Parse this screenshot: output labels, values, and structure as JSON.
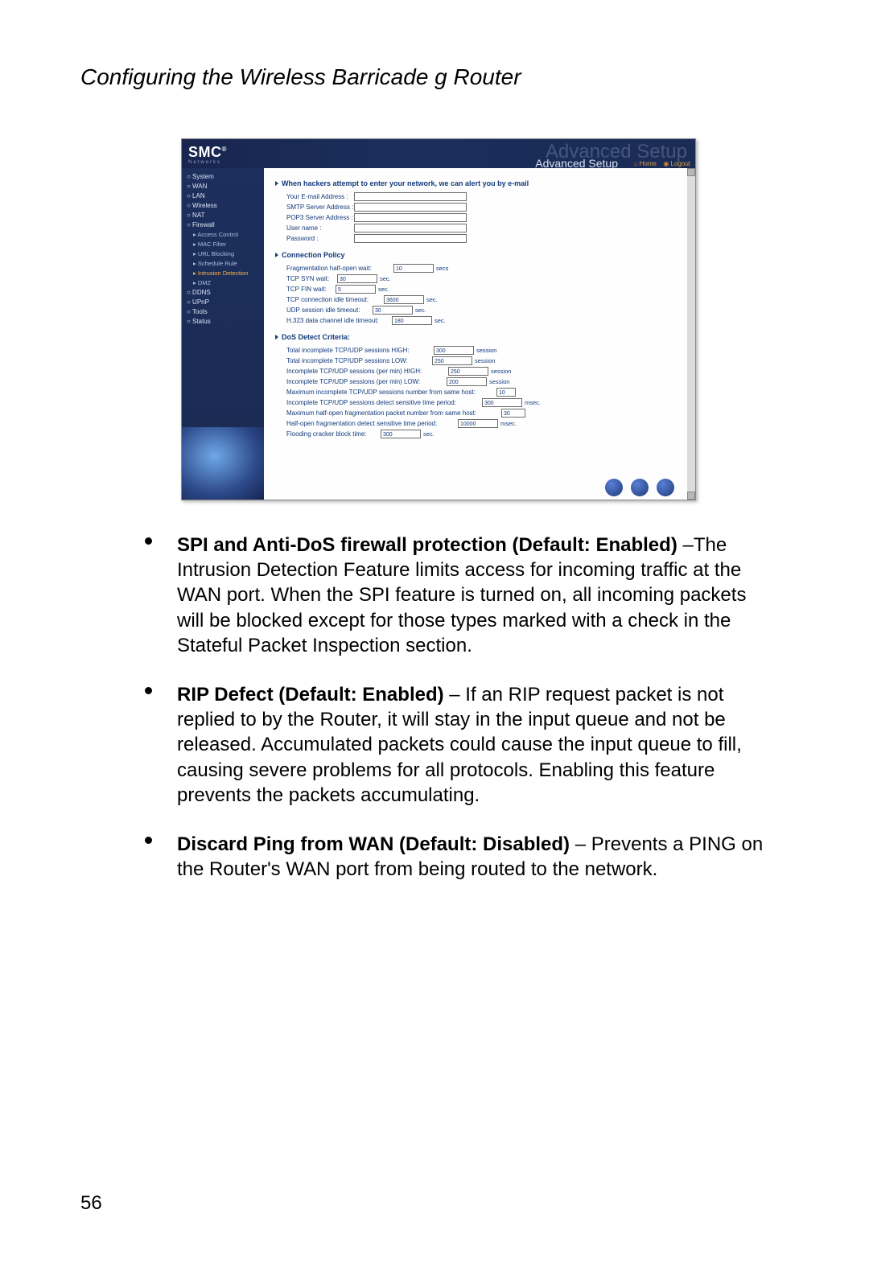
{
  "page": {
    "title": "Configuring the Wireless Barricade g Router",
    "number": "56"
  },
  "screenshot": {
    "logo": "SMC",
    "logo_registered": "®",
    "logo_sub": "Networks",
    "adv_ghost": "Advanced Setup",
    "adv": "Advanced Setup",
    "home": "Home",
    "logout": "Logout",
    "sidebar": {
      "items": [
        {
          "label": "System",
          "sub": false,
          "active": false
        },
        {
          "label": "WAN",
          "sub": false,
          "active": false
        },
        {
          "label": "LAN",
          "sub": false,
          "active": false
        },
        {
          "label": "Wireless",
          "sub": false,
          "active": false
        },
        {
          "label": "NAT",
          "sub": false,
          "active": false
        },
        {
          "label": "Firewall",
          "sub": false,
          "active": false
        },
        {
          "label": "Access Control",
          "sub": true,
          "active": false
        },
        {
          "label": "MAC Filter",
          "sub": true,
          "active": false
        },
        {
          "label": "URL Blocking",
          "sub": true,
          "active": false
        },
        {
          "label": "Schedule Rule",
          "sub": true,
          "active": false
        },
        {
          "label": "Intrusion Detection",
          "sub": true,
          "active": true
        },
        {
          "label": "DMZ",
          "sub": true,
          "active": false
        },
        {
          "label": "DDNS",
          "sub": false,
          "active": false
        },
        {
          "label": "UPnP",
          "sub": false,
          "active": false
        },
        {
          "label": "Tools",
          "sub": false,
          "active": false
        },
        {
          "label": "Status",
          "sub": false,
          "active": false
        }
      ]
    },
    "email_alert_header": "When hackers attempt to enter your network, we can alert you by e-mail",
    "email": {
      "addr_label": "Your E-mail Address :",
      "smtp_label": "SMTP Server Address :",
      "pop3_label": "POP3 Server Address :",
      "user_label": "User name :",
      "pass_label": "Password :"
    },
    "conn_policy_header": "Connection Policy",
    "conn": {
      "frag_label": "Fragmentation half-open wait:",
      "frag_val": "10",
      "frag_unit": "secs",
      "syn_label": "TCP SYN wait:",
      "syn_val": "30",
      "syn_unit": "sec.",
      "fin_label": "TCP FIN wait:",
      "fin_val": "5",
      "fin_unit": "sec.",
      "tcp_idle_label": "TCP connection idle timeout:",
      "tcp_idle_val": "3600",
      "tcp_idle_unit": "sec.",
      "udp_idle_label": "UDP session idle timeout:",
      "udp_idle_val": "30",
      "udp_idle_unit": "sec.",
      "h323_label": "H.323 data channel idle timeout:",
      "h323_val": "180",
      "h323_unit": "sec."
    },
    "dos_header": "DoS Detect Criteria:",
    "dos": {
      "hi_label": "Total incomplete TCP/UDP sessions HIGH:",
      "hi_val": "300",
      "hi_unit": "session",
      "lo_label": "Total incomplete TCP/UDP sessions LOW:",
      "lo_val": "250",
      "lo_unit": "session",
      "pm_hi_label": "Incomplete TCP/UDP sessions (per min) HIGH:",
      "pm_hi_val": "250",
      "pm_hi_unit": "session",
      "pm_lo_label": "Incomplete TCP/UDP sessions (per min) LOW:",
      "pm_lo_val": "200",
      "pm_lo_unit": "session",
      "max_host_label": "Maximum incomplete TCP/UDP sessions number from same host:",
      "max_host_val": "10",
      "detect_time_label": "Incomplete TCP/UDP sessions detect sensitive time period:",
      "detect_time_val": "300",
      "detect_time_unit": "msec.",
      "max_frag_label": "Maximum half-open fragmentation packet number from same host:",
      "max_frag_val": "30",
      "frag_time_label": "Half-open fragmentation detect sensitive time period:",
      "frag_time_val": "10000",
      "frag_time_unit": "msec.",
      "flood_label": "Flooding cracker block time:",
      "flood_val": "300",
      "flood_unit": "sec."
    }
  },
  "bullets": {
    "b1_bold": "SPI and Anti-DoS firewall protection (Default: Enabled)",
    "b1_text": " –The Intrusion Detection Feature limits access for incoming traffic at the WAN port. When the SPI feature is turned on, all incoming packets will be blocked except for those types marked with a check in the Stateful Packet Inspection section.",
    "b2_bold": "RIP Defect (Default: Enabled)",
    "b2_text": " – If an RIP request packet is not replied to by the Router, it will stay in the input queue and not be released. Accumulated packets could cause the input queue to fill, causing severe problems for all protocols. Enabling this feature prevents the packets accumulating.",
    "b3_bold": "Discard Ping from WAN (Default: Disabled)",
    "b3_text": " – Prevents a PING on the Router's WAN port from being routed to the network."
  }
}
